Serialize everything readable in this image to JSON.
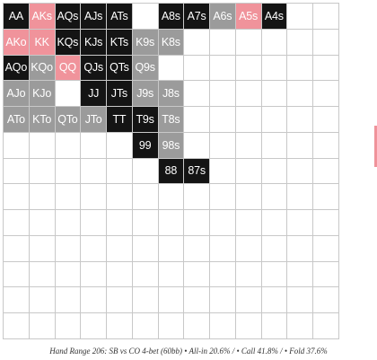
{
  "range": {
    "cells": [
      [
        "AA",
        "allin-l"
      ],
      [
        "AKs",
        "allin"
      ],
      [
        "AQs",
        "call"
      ],
      [
        "AJs",
        "call"
      ],
      [
        "ATs",
        "call"
      ],
      [
        "",
        "fold"
      ],
      [
        "A8s",
        "call"
      ],
      [
        "A7s",
        "call"
      ],
      [
        "A6s",
        "mix"
      ],
      [
        "A5s",
        "allin"
      ],
      [
        "A4s",
        "call"
      ],
      [
        "",
        "fold"
      ],
      [
        "",
        "fold"
      ],
      [
        "AKo",
        "allin"
      ],
      [
        "KK",
        "allin"
      ],
      [
        "KQs",
        "call"
      ],
      [
        "KJs",
        "call"
      ],
      [
        "KTs",
        "call"
      ],
      [
        "K9s",
        "mix"
      ],
      [
        "K8s",
        "mix"
      ],
      [
        "",
        "fold"
      ],
      [
        "",
        "fold"
      ],
      [
        "",
        "fold"
      ],
      [
        "",
        "fold"
      ],
      [
        "",
        "fold"
      ],
      [
        "",
        "fold"
      ],
      [
        "AQo",
        "call"
      ],
      [
        "KQo",
        "mix"
      ],
      [
        "QQ",
        "allin"
      ],
      [
        "QJs",
        "call"
      ],
      [
        "QTs",
        "call"
      ],
      [
        "Q9s",
        "mix"
      ],
      [
        "",
        "fold"
      ],
      [
        "",
        "fold"
      ],
      [
        "",
        "fold"
      ],
      [
        "",
        "fold"
      ],
      [
        "",
        "fold"
      ],
      [
        "",
        "fold"
      ],
      [
        "",
        "fold"
      ],
      [
        "AJo",
        "mix"
      ],
      [
        "KJo",
        "mix"
      ],
      [
        "",
        "fold"
      ],
      [
        "JJ",
        "call"
      ],
      [
        "JTs",
        "call"
      ],
      [
        "J9s",
        "mix"
      ],
      [
        "J8s",
        "mix"
      ],
      [
        "",
        "fold"
      ],
      [
        "",
        "fold"
      ],
      [
        "",
        "fold"
      ],
      [
        "",
        "fold"
      ],
      [
        "",
        "fold"
      ],
      [
        "",
        "fold"
      ],
      [
        "ATo",
        "mix"
      ],
      [
        "KTo",
        "mix"
      ],
      [
        "QTo",
        "mix"
      ],
      [
        "JTo",
        "mix"
      ],
      [
        "TT",
        "call"
      ],
      [
        "T9s",
        "call"
      ],
      [
        "T8s",
        "mix"
      ],
      [
        "",
        "fold"
      ],
      [
        "",
        "fold"
      ],
      [
        "",
        "fold"
      ],
      [
        "",
        "fold"
      ],
      [
        "",
        "fold"
      ],
      [
        "",
        "fold"
      ],
      [
        "",
        "fold"
      ],
      [
        "",
        "fold"
      ],
      [
        "",
        "fold"
      ],
      [
        "",
        "fold"
      ],
      [
        "",
        "fold"
      ],
      [
        "99",
        "call"
      ],
      [
        "98s",
        "mix"
      ],
      [
        "",
        "fold"
      ],
      [
        "",
        "fold"
      ],
      [
        "",
        "fold"
      ],
      [
        "",
        "fold"
      ],
      [
        "",
        "fold"
      ],
      [
        "",
        "fold"
      ],
      [
        "",
        "fold"
      ],
      [
        "",
        "fold"
      ],
      [
        "",
        "fold"
      ],
      [
        "",
        "fold"
      ],
      [
        "",
        "fold"
      ],
      [
        "",
        "fold"
      ],
      [
        "88",
        "call"
      ],
      [
        "87s",
        "call"
      ],
      [
        "",
        "fold"
      ],
      [
        "",
        "fold"
      ],
      [
        "",
        "fold"
      ],
      [
        "",
        "fold"
      ],
      [
        "",
        "fold"
      ],
      [
        "",
        "fold"
      ],
      [
        "",
        "fold"
      ],
      [
        "",
        "fold"
      ],
      [
        "",
        "fold"
      ],
      [
        "",
        "fold"
      ],
      [
        "",
        "fold"
      ],
      [
        "",
        "fold"
      ],
      [
        "",
        "fold"
      ],
      [
        "",
        "fold"
      ],
      [
        "",
        "fold"
      ],
      [
        "",
        "fold"
      ],
      [
        "",
        "fold"
      ],
      [
        "",
        "fold"
      ],
      [
        "",
        "fold"
      ],
      [
        "",
        "fold"
      ],
      [
        "",
        "fold"
      ],
      [
        "",
        "fold"
      ],
      [
        "",
        "fold"
      ],
      [
        "",
        "fold"
      ],
      [
        "",
        "fold"
      ],
      [
        "",
        "fold"
      ],
      [
        "",
        "fold"
      ],
      [
        "",
        "fold"
      ],
      [
        "",
        "fold"
      ],
      [
        "",
        "fold"
      ],
      [
        "",
        "fold"
      ],
      [
        "",
        "fold"
      ],
      [
        "",
        "fold"
      ],
      [
        "",
        "fold"
      ],
      [
        "",
        "fold"
      ],
      [
        "",
        "fold"
      ],
      [
        "",
        "fold"
      ],
      [
        "",
        "fold"
      ],
      [
        "",
        "fold"
      ],
      [
        "",
        "fold"
      ],
      [
        "",
        "fold"
      ],
      [
        "",
        "fold"
      ],
      [
        "",
        "fold"
      ],
      [
        "",
        "fold"
      ],
      [
        "",
        "fold"
      ],
      [
        "",
        "fold"
      ],
      [
        "",
        "fold"
      ],
      [
        "",
        "fold"
      ],
      [
        "",
        "fold"
      ],
      [
        "",
        "fold"
      ],
      [
        "",
        "fold"
      ],
      [
        "",
        "fold"
      ],
      [
        "",
        "fold"
      ],
      [
        "",
        "fold"
      ],
      [
        "",
        "fold"
      ],
      [
        "",
        "fold"
      ],
      [
        "",
        "fold"
      ],
      [
        "",
        "fold"
      ],
      [
        "",
        "fold"
      ],
      [
        "",
        "fold"
      ],
      [
        "",
        "fold"
      ],
      [
        "",
        "fold"
      ],
      [
        "",
        "fold"
      ],
      [
        "",
        "fold"
      ],
      [
        "",
        "fold"
      ],
      [
        "",
        "fold"
      ],
      [
        "",
        "fold"
      ],
      [
        "",
        "fold"
      ],
      [
        "",
        "fold"
      ],
      [
        "",
        "fold"
      ],
      [
        "",
        "fold"
      ],
      [
        "",
        "fold"
      ],
      [
        "",
        "fold"
      ],
      [
        "",
        "fold"
      ],
      [
        "",
        "fold"
      ],
      [
        "",
        "fold"
      ],
      [
        "",
        "fold"
      ],
      [
        "",
        "fold"
      ],
      [
        "",
        "fold"
      ],
      [
        "",
        "fold"
      ],
      [
        "",
        "fold"
      ],
      [
        "",
        "fold"
      ],
      [
        "",
        "fold"
      ]
    ]
  },
  "colors": {
    "allin": "#f0939b",
    "call": "#141414",
    "mix": "#9b9b9b",
    "fold": "#ffffff",
    "grid_line": "#c8c8c8"
  },
  "caption": "Hand Range 206: SB vs CO 4-bet (60bb) • All-in 20.6% / • Call 41.8% / • Fold 37.6%"
}
